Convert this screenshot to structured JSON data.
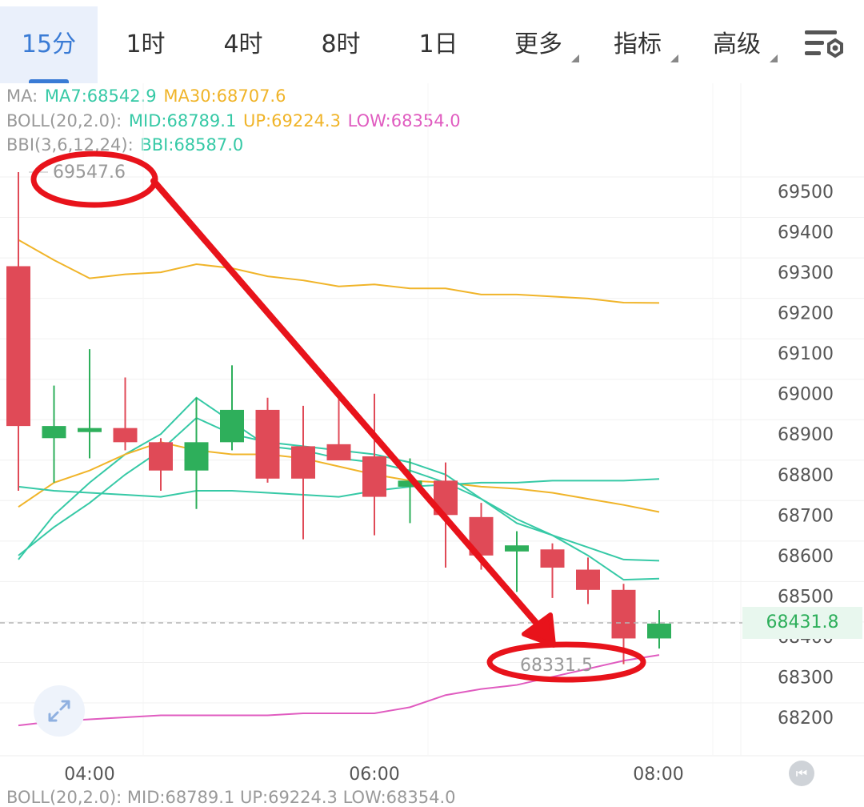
{
  "tabs": [
    {
      "label": "15分",
      "active": true
    },
    {
      "label": "1时"
    },
    {
      "label": "4时"
    },
    {
      "label": "8时"
    },
    {
      "label": "1日"
    },
    {
      "label": "更多",
      "dropdown": true
    },
    {
      "label": "指标",
      "dropdown": true
    },
    {
      "label": "高级",
      "dropdown": true
    }
  ],
  "settings_icon": "settings-sliders-icon",
  "legend": {
    "ma": {
      "name": "MA:",
      "ma7": "MA7:68542.9",
      "ma30": "MA30:68707.6"
    },
    "boll": {
      "name": "BOLL(20,2.0):",
      "mid": "MID:68789.1",
      "up": "UP:69224.3",
      "low": "LOW:68354.0"
    },
    "bbi": {
      "name": "BBI(3,6,12,24):",
      "bbi": "BBI:68587.0"
    }
  },
  "bottom_legend": "BOLL(20,2.0): MID:68789.1 UP:69224.3 LOW:68354.0",
  "current_price": "68431.8",
  "annotations": {
    "high_label": "69547.6",
    "low_label": "68331.5"
  },
  "colors": {
    "up": "#2eaf5b",
    "down": "#e04a57",
    "ma7": "#36c9a6",
    "ma30": "#f0b429",
    "boll_low": "#e05cc0",
    "annotation": "#e8131b",
    "accent": "#3a7bd5"
  },
  "chart_data": {
    "type": "candlestick",
    "x_ticks": [
      "04:00",
      "06:00",
      "08:00"
    ],
    "y_ticks": [
      68200,
      68300,
      68400,
      68500,
      68600,
      68700,
      68800,
      68900,
      69000,
      69100,
      69200,
      69300,
      69400,
      69500
    ],
    "ylim": [
      68100,
      69600
    ],
    "candles": [
      {
        "open": 69315,
        "close": 68920,
        "high": 69547.6,
        "low": 68760
      },
      {
        "open": 68890,
        "close": 68920,
        "high": 69020,
        "low": 68780
      },
      {
        "open": 68905,
        "close": 68915,
        "high": 69110,
        "low": 68840
      },
      {
        "open": 68915,
        "close": 68880,
        "high": 69040,
        "low": 68860
      },
      {
        "open": 68880,
        "close": 68810,
        "high": 68890,
        "low": 68760
      },
      {
        "open": 68810,
        "close": 68880,
        "high": 68990,
        "low": 68715
      },
      {
        "open": 68880,
        "close": 68960,
        "high": 69070,
        "low": 68860
      },
      {
        "open": 68960,
        "close": 68790,
        "high": 68990,
        "low": 68780
      },
      {
        "open": 68870,
        "close": 68790,
        "high": 68970,
        "low": 68640
      },
      {
        "open": 68875,
        "close": 68835,
        "high": 68990,
        "low": 68840
      },
      {
        "open": 68845,
        "close": 68745,
        "high": 69000,
        "low": 68650
      },
      {
        "open": 68770,
        "close": 68785,
        "high": 68840,
        "low": 68680
      },
      {
        "open": 68785,
        "close": 68700,
        "high": 68830,
        "low": 68570
      },
      {
        "open": 68695,
        "close": 68600,
        "high": 68730,
        "low": 68565
      },
      {
        "open": 68610,
        "close": 68625,
        "high": 68660,
        "low": 68510
      },
      {
        "open": 68615,
        "close": 68570,
        "high": 68630,
        "low": 68495
      },
      {
        "open": 68565,
        "close": 68515,
        "high": 68595,
        "low": 68480
      },
      {
        "open": 68515,
        "close": 68395,
        "high": 68530,
        "low": 68331.5
      },
      {
        "open": 68395,
        "close": 68431.8,
        "high": 68465,
        "low": 68370
      }
    ],
    "series": [
      {
        "name": "MA7",
        "color": "#36c9a6",
        "values": [
          68590,
          68700,
          68780,
          68850,
          68900,
          68990,
          68930,
          68870,
          68860,
          68840,
          68830,
          68810,
          68780,
          68740,
          68690,
          68650,
          68600,
          68540,
          68542.9
        ]
      },
      {
        "name": "MA30",
        "color": "#f0b429",
        "values": [
          68720,
          68780,
          68810,
          68850,
          68880,
          68860,
          68850,
          68850,
          68840,
          68820,
          68800,
          68785,
          68780,
          68770,
          68765,
          68755,
          68740,
          68725,
          68707.6
        ]
      },
      {
        "name": "MID",
        "color": "#36c9a6",
        "values": [
          68770,
          68760,
          68755,
          68750,
          68745,
          68760,
          68760,
          68755,
          68750,
          68745,
          68760,
          68770,
          68775,
          68780,
          68780,
          68785,
          68785,
          68785,
          68789.1
        ]
      },
      {
        "name": "UP",
        "color": "#f0b429",
        "values": [
          69380,
          69330,
          69285,
          69295,
          69300,
          69320,
          69310,
          69290,
          69280,
          69265,
          69270,
          69260,
          69260,
          69245,
          69245,
          69240,
          69235,
          69225,
          69224.3
        ]
      },
      {
        "name": "LOW",
        "color": "#e05cc0",
        "values": [
          68180,
          68190,
          68195,
          68200,
          68205,
          68205,
          68205,
          68205,
          68210,
          68210,
          68210,
          68225,
          68255,
          68270,
          68280,
          68300,
          68320,
          68340,
          68354.0
        ]
      },
      {
        "name": "BBI",
        "color": "#36c9a6",
        "values": [
          68600,
          68670,
          68730,
          68800,
          68860,
          68940,
          68900,
          68880,
          68870,
          68860,
          68850,
          68830,
          68800,
          68740,
          68680,
          68650,
          68620,
          68590,
          68587.0
        ]
      }
    ]
  }
}
